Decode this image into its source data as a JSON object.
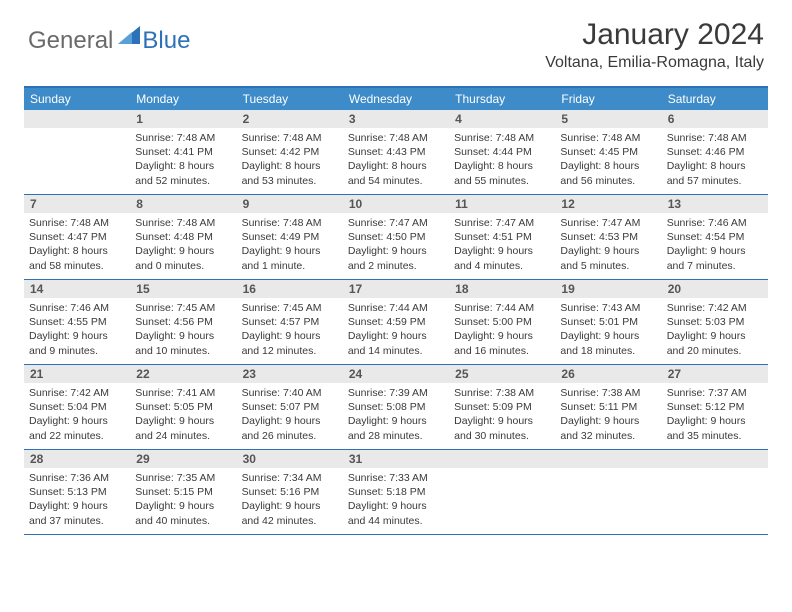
{
  "brand": {
    "part1": "General",
    "part2": "Blue"
  },
  "title": "January 2024",
  "location": "Voltana, Emilia-Romagna, Italy",
  "colors": {
    "accent": "#2d71b8",
    "header_bg": "#3d8bc9",
    "daynum_bg": "#e9e9e9",
    "text": "#3a3a3a",
    "logo_gray": "#6a6a6a"
  },
  "weekdays": [
    "Sunday",
    "Monday",
    "Tuesday",
    "Wednesday",
    "Thursday",
    "Friday",
    "Saturday"
  ],
  "weeks": [
    [
      null,
      {
        "n": "1",
        "sr": "7:48 AM",
        "ss": "4:41 PM",
        "dl": "8 hours and 52 minutes."
      },
      {
        "n": "2",
        "sr": "7:48 AM",
        "ss": "4:42 PM",
        "dl": "8 hours and 53 minutes."
      },
      {
        "n": "3",
        "sr": "7:48 AM",
        "ss": "4:43 PM",
        "dl": "8 hours and 54 minutes."
      },
      {
        "n": "4",
        "sr": "7:48 AM",
        "ss": "4:44 PM",
        "dl": "8 hours and 55 minutes."
      },
      {
        "n": "5",
        "sr": "7:48 AM",
        "ss": "4:45 PM",
        "dl": "8 hours and 56 minutes."
      },
      {
        "n": "6",
        "sr": "7:48 AM",
        "ss": "4:46 PM",
        "dl": "8 hours and 57 minutes."
      }
    ],
    [
      {
        "n": "7",
        "sr": "7:48 AM",
        "ss": "4:47 PM",
        "dl": "8 hours and 58 minutes."
      },
      {
        "n": "8",
        "sr": "7:48 AM",
        "ss": "4:48 PM",
        "dl": "9 hours and 0 minutes."
      },
      {
        "n": "9",
        "sr": "7:48 AM",
        "ss": "4:49 PM",
        "dl": "9 hours and 1 minute."
      },
      {
        "n": "10",
        "sr": "7:47 AM",
        "ss": "4:50 PM",
        "dl": "9 hours and 2 minutes."
      },
      {
        "n": "11",
        "sr": "7:47 AM",
        "ss": "4:51 PM",
        "dl": "9 hours and 4 minutes."
      },
      {
        "n": "12",
        "sr": "7:47 AM",
        "ss": "4:53 PM",
        "dl": "9 hours and 5 minutes."
      },
      {
        "n": "13",
        "sr": "7:46 AM",
        "ss": "4:54 PM",
        "dl": "9 hours and 7 minutes."
      }
    ],
    [
      {
        "n": "14",
        "sr": "7:46 AM",
        "ss": "4:55 PM",
        "dl": "9 hours and 9 minutes."
      },
      {
        "n": "15",
        "sr": "7:45 AM",
        "ss": "4:56 PM",
        "dl": "9 hours and 10 minutes."
      },
      {
        "n": "16",
        "sr": "7:45 AM",
        "ss": "4:57 PM",
        "dl": "9 hours and 12 minutes."
      },
      {
        "n": "17",
        "sr": "7:44 AM",
        "ss": "4:59 PM",
        "dl": "9 hours and 14 minutes."
      },
      {
        "n": "18",
        "sr": "7:44 AM",
        "ss": "5:00 PM",
        "dl": "9 hours and 16 minutes."
      },
      {
        "n": "19",
        "sr": "7:43 AM",
        "ss": "5:01 PM",
        "dl": "9 hours and 18 minutes."
      },
      {
        "n": "20",
        "sr": "7:42 AM",
        "ss": "5:03 PM",
        "dl": "9 hours and 20 minutes."
      }
    ],
    [
      {
        "n": "21",
        "sr": "7:42 AM",
        "ss": "5:04 PM",
        "dl": "9 hours and 22 minutes."
      },
      {
        "n": "22",
        "sr": "7:41 AM",
        "ss": "5:05 PM",
        "dl": "9 hours and 24 minutes."
      },
      {
        "n": "23",
        "sr": "7:40 AM",
        "ss": "5:07 PM",
        "dl": "9 hours and 26 minutes."
      },
      {
        "n": "24",
        "sr": "7:39 AM",
        "ss": "5:08 PM",
        "dl": "9 hours and 28 minutes."
      },
      {
        "n": "25",
        "sr": "7:38 AM",
        "ss": "5:09 PM",
        "dl": "9 hours and 30 minutes."
      },
      {
        "n": "26",
        "sr": "7:38 AM",
        "ss": "5:11 PM",
        "dl": "9 hours and 32 minutes."
      },
      {
        "n": "27",
        "sr": "7:37 AM",
        "ss": "5:12 PM",
        "dl": "9 hours and 35 minutes."
      }
    ],
    [
      {
        "n": "28",
        "sr": "7:36 AM",
        "ss": "5:13 PM",
        "dl": "9 hours and 37 minutes."
      },
      {
        "n": "29",
        "sr": "7:35 AM",
        "ss": "5:15 PM",
        "dl": "9 hours and 40 minutes."
      },
      {
        "n": "30",
        "sr": "7:34 AM",
        "ss": "5:16 PM",
        "dl": "9 hours and 42 minutes."
      },
      {
        "n": "31",
        "sr": "7:33 AM",
        "ss": "5:18 PM",
        "dl": "9 hours and 44 minutes."
      },
      null,
      null,
      null
    ]
  ],
  "labels": {
    "sunrise": "Sunrise:",
    "sunset": "Sunset:",
    "daylight": "Daylight:"
  }
}
